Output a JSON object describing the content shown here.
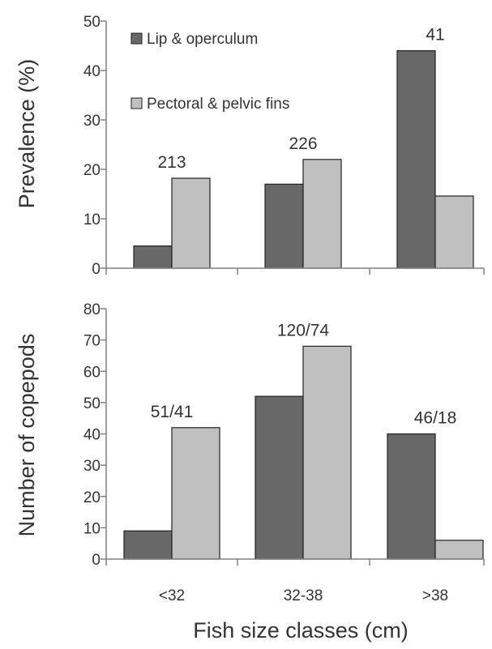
{
  "colors": {
    "dark_bar": "#686868",
    "light_bar": "#c0c0c0",
    "axis": "#808080",
    "bar_stroke": "#222222",
    "text": "#333333"
  },
  "legend": {
    "items": [
      "Lip & operculum",
      "Pectoral & pelvic fins"
    ]
  },
  "chart_data": [
    {
      "type": "bar",
      "categories": [
        "<32",
        "32-38",
        ">38"
      ],
      "series": [
        {
          "name": "Lip & operculum",
          "values": [
            4.5,
            17,
            44
          ]
        },
        {
          "name": "Pectoral & pelvic fins",
          "values": [
            18.2,
            22,
            14.6
          ]
        }
      ],
      "ylabel": "Prevalence (%)",
      "ylim": [
        0,
        50
      ],
      "yticks": [
        0,
        10,
        20,
        30,
        40,
        50
      ],
      "annotations": [
        "213",
        "226",
        "41"
      ],
      "legend": "top-left",
      "grid": false
    },
    {
      "type": "bar",
      "categories": [
        "<32",
        "32-38",
        ">38"
      ],
      "series": [
        {
          "name": "Lip & operculum",
          "values": [
            9,
            52,
            40
          ]
        },
        {
          "name": "Pectoral & pelvic fins",
          "values": [
            42,
            68,
            6
          ]
        }
      ],
      "ylabel": "Number of copepods",
      "xlabel": "Fish size classes (cm)",
      "ylim": [
        0,
        80
      ],
      "yticks": [
        0,
        10,
        20,
        30,
        40,
        50,
        60,
        70,
        80
      ],
      "annotations": [
        "51/41",
        "120/74",
        "46/18"
      ],
      "grid": false
    }
  ]
}
